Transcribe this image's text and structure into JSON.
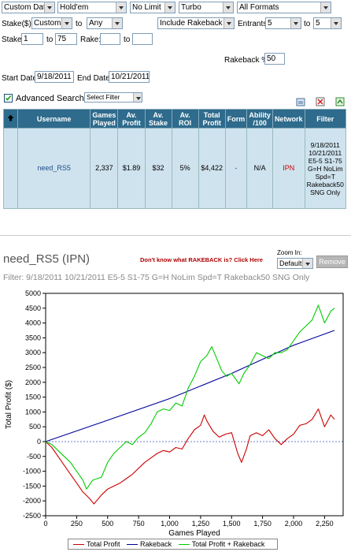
{
  "filters": {
    "date_mode": "Custom Date",
    "game": "Hold'em",
    "limit": "No Limit",
    "speed": "Turbo",
    "format": "All Formats",
    "stake_label": "Stake($)",
    "stake_mode": "Custom",
    "to_label": "to",
    "stake_to": "Any",
    "rakeback_mode": "Include Rakeback",
    "entrants_label": "Entrants",
    "entrants_from": "5",
    "entrants_to": "5",
    "stake_min_label": "Stake:",
    "stake_min": "1",
    "stake_max": "75",
    "rake_label": "Rake:",
    "rake_min": "",
    "rake_max": "",
    "rakeback_pct_label": "Rakeback %",
    "rakeback_pct": "50",
    "start_date_label": "Start Date:",
    "start_date": "9/18/2011",
    "end_date_label": "End Date:",
    "end_date": "10/21/2011",
    "advanced_label": "Advanced Search",
    "select_filter": "Select Filter"
  },
  "table": {
    "headers": [
      "Username",
      "Games Played",
      "Av. Profit",
      "Av. Stake",
      "Av. ROI",
      "Total Profit",
      "Form",
      "Ability /100",
      "Network",
      "Filter"
    ],
    "row": {
      "username": "need_RS5",
      "games_played": "2,337",
      "av_profit": "$1.89",
      "av_stake": "$32",
      "av_roi": "5%",
      "total_profit": "$4,422",
      "form": "-",
      "ability": "N/A",
      "network": "IPN",
      "filter": "9/18/2011 10/21/2011 E5-5 S1-75 G=H NoLim Spd=T Rakeback50 SNG Only"
    }
  },
  "graph": {
    "player_title": "need_RS5 (IPN)",
    "rakeback_link": "Don't know what RAKEBACK is? Click Here",
    "zoom_label": "Zoom In:",
    "zoom_value": "Default",
    "remove_label": "Remove",
    "filter_text": "Filter: 9/18/2011 10/21/2011 E5-5 S1-75 G=H NoLim Spd=T Rakeback50 SNG Only"
  },
  "colors": {
    "header_bg": "#2e6b8c",
    "row_bg": "#cfe3ee",
    "total_profit": "#cc0000",
    "rakeback": "#00009a",
    "total_plus_rakeback": "#00cc00",
    "network": "#cc0000",
    "username": "#1f4e8c"
  },
  "icons": [
    "sort-up-arrow-icon",
    "excel-export-icon",
    "csv-export-icon",
    "refresh-icon",
    "checkbox-checked-icon"
  ],
  "chart_data": {
    "type": "line",
    "xlabel": "Games Played",
    "ylabel": "Total Profit ($)",
    "xlim": [
      0,
      2400
    ],
    "ylim": [
      -2500,
      5000
    ],
    "x_ticks": [
      0,
      250,
      500,
      750,
      1000,
      1250,
      1500,
      1750,
      2000,
      2250
    ],
    "x_tick_labels": [
      "0",
      "250",
      "500",
      "750",
      "1,000",
      "1,250",
      "1,500",
      "1,750",
      "2,000",
      "2,250"
    ],
    "y_ticks": [
      -2500,
      -2000,
      -1500,
      -1000,
      -500,
      0,
      500,
      1000,
      1500,
      2000,
      2500,
      3000,
      3500,
      4000,
      4500,
      5000
    ],
    "y_tick_labels": [
      "-2500",
      "-2000",
      "-1500",
      "-1000",
      "-500",
      "0",
      "500",
      "1000",
      "1500",
      "2000",
      "2500",
      "3000",
      "3500",
      "4000",
      "4500",
      "5000"
    ],
    "legend_position": "bottom",
    "series": [
      {
        "name": "Total Profit",
        "points": [
          [
            0,
            0
          ],
          [
            50,
            -200
          ],
          [
            100,
            -500
          ],
          [
            150,
            -800
          ],
          [
            200,
            -1100
          ],
          [
            250,
            -1400
          ],
          [
            300,
            -1700
          ],
          [
            350,
            -1900
          ],
          [
            390,
            -2100
          ],
          [
            450,
            -1800
          ],
          [
            500,
            -1600
          ],
          [
            550,
            -1500
          ],
          [
            600,
            -1400
          ],
          [
            650,
            -1250
          ],
          [
            700,
            -1100
          ],
          [
            750,
            -900
          ],
          [
            800,
            -700
          ],
          [
            850,
            -550
          ],
          [
            900,
            -400
          ],
          [
            950,
            -300
          ],
          [
            1000,
            -350
          ],
          [
            1050,
            -200
          ],
          [
            1100,
            -250
          ],
          [
            1150,
            100
          ],
          [
            1200,
            400
          ],
          [
            1250,
            550
          ],
          [
            1280,
            900
          ],
          [
            1300,
            700
          ],
          [
            1350,
            350
          ],
          [
            1400,
            150
          ],
          [
            1450,
            250
          ],
          [
            1500,
            300
          ],
          [
            1550,
            -400
          ],
          [
            1580,
            -700
          ],
          [
            1620,
            -250
          ],
          [
            1650,
            200
          ],
          [
            1700,
            300
          ],
          [
            1750,
            200
          ],
          [
            1800,
            400
          ],
          [
            1850,
            100
          ],
          [
            1900,
            -100
          ],
          [
            1950,
            100
          ],
          [
            2000,
            250
          ],
          [
            2050,
            550
          ],
          [
            2100,
            600
          ],
          [
            2150,
            750
          ],
          [
            2200,
            1100
          ],
          [
            2250,
            500
          ],
          [
            2300,
            900
          ],
          [
            2330,
            750
          ]
        ]
      },
      {
        "name": "Rakeback",
        "points": [
          [
            0,
            0
          ],
          [
            500,
            720
          ],
          [
            1000,
            1450
          ],
          [
            1500,
            2300
          ],
          [
            2000,
            3250
          ],
          [
            2330,
            3750
          ]
        ]
      },
      {
        "name": "Total Profit + Rakeback",
        "points": [
          [
            0,
            0
          ],
          [
            50,
            -100
          ],
          [
            100,
            -300
          ],
          [
            150,
            -500
          ],
          [
            200,
            -700
          ],
          [
            250,
            -1000
          ],
          [
            300,
            -1300
          ],
          [
            330,
            -1600
          ],
          [
            380,
            -1300
          ],
          [
            450,
            -1200
          ],
          [
            500,
            -700
          ],
          [
            550,
            -400
          ],
          [
            600,
            -200
          ],
          [
            650,
            0
          ],
          [
            700,
            -100
          ],
          [
            750,
            150
          ],
          [
            800,
            300
          ],
          [
            850,
            600
          ],
          [
            900,
            1000
          ],
          [
            950,
            1100
          ],
          [
            1000,
            1050
          ],
          [
            1050,
            1300
          ],
          [
            1100,
            1200
          ],
          [
            1150,
            1800
          ],
          [
            1200,
            2200
          ],
          [
            1250,
            2700
          ],
          [
            1300,
            2900
          ],
          [
            1340,
            3200
          ],
          [
            1380,
            2800
          ],
          [
            1420,
            2400
          ],
          [
            1460,
            2200
          ],
          [
            1500,
            2300
          ],
          [
            1560,
            1950
          ],
          [
            1600,
            2300
          ],
          [
            1650,
            2600
          ],
          [
            1700,
            3000
          ],
          [
            1750,
            2900
          ],
          [
            1800,
            2800
          ],
          [
            1850,
            3000
          ],
          [
            1900,
            3000
          ],
          [
            1950,
            3100
          ],
          [
            2000,
            3400
          ],
          [
            2050,
            3700
          ],
          [
            2100,
            3900
          ],
          [
            2150,
            4100
          ],
          [
            2200,
            4600
          ],
          [
            2250,
            4000
          ],
          [
            2300,
            4400
          ],
          [
            2330,
            4500
          ]
        ]
      }
    ]
  }
}
